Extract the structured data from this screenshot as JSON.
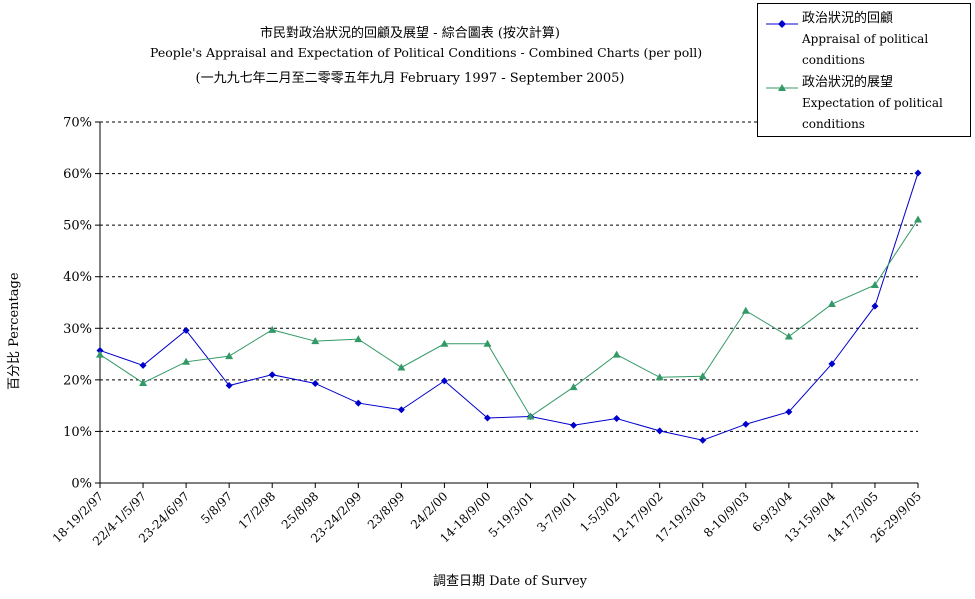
{
  "chart_data": {
    "type": "line",
    "title_zh": "市民對政治狀況的回顧及展望 - 綜合圖表 (按次計算)",
    "title_en": "People's Appraisal and Expectation of Political Conditions - Combined Charts  (per poll)",
    "subtitle": "(一九九七年二月至二零零五年九月 February 1997 - September 2005)",
    "ylabel": "百分比 Percentage",
    "xlabel": "調查日期 Date of Survey",
    "ylim": [
      0,
      70
    ],
    "yticks": [
      "0%",
      "10%",
      "20%",
      "30%",
      "40%",
      "50%",
      "60%",
      "70%"
    ],
    "grid": true,
    "legend_position": "top-right",
    "categories": [
      "18-19/2/97",
      "22/4-1/5/97",
      "23-24/6/97",
      "5/8/97",
      "17/2/98",
      "25/8/98",
      "23-24/2/99",
      "23/8/99",
      "24/2/00",
      "14-18/9/00",
      "5-19/3/01",
      "3-7/9/01",
      "1-5/3/02",
      "12-17/9/02",
      "17-19/3/03",
      "8-10/9/03",
      "6-9/3/04",
      "13-15/9/04",
      "14-17/3/05",
      "26-29/9/05"
    ],
    "series": [
      {
        "name_zh": "政治狀況的回顧",
        "name_en": "Appraisal of political conditions",
        "color": "#0000cc",
        "marker": "diamond",
        "values": [
          25.7,
          22.8,
          29.6,
          18.9,
          21.0,
          19.3,
          15.5,
          14.2,
          19.8,
          12.6,
          12.9,
          11.2,
          12.5,
          10.1,
          8.3,
          11.4,
          13.8,
          23.1,
          34.3,
          60.1
        ]
      },
      {
        "name_zh": "政治狀況的展望",
        "name_en": "Expectation of political conditions",
        "color": "#339966",
        "marker": "triangle",
        "values": [
          24.9,
          19.4,
          23.5,
          24.6,
          29.7,
          27.5,
          27.9,
          22.4,
          27.0,
          27.0,
          12.9,
          18.6,
          24.9,
          20.5,
          20.7,
          33.4,
          28.4,
          34.7,
          38.4,
          51.1
        ]
      }
    ]
  }
}
